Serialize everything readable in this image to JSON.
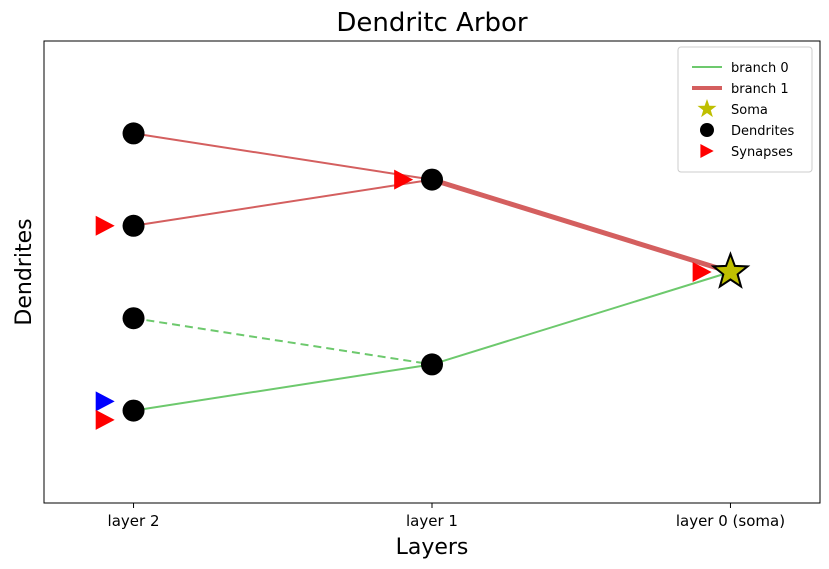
{
  "chart_data": {
    "type": "line",
    "title": "Dendritc Arbor",
    "xlabel": "Layers",
    "ylabel": "Dendrites",
    "xticks": [
      {
        "x": 0,
        "label": "layer 2"
      },
      {
        "x": 1,
        "label": "layer 1"
      },
      {
        "x": 2,
        "label": "layer 0 (soma)"
      }
    ],
    "xlim": [
      -0.3,
      2.3
    ],
    "ylim": [
      -0.5,
      4.5
    ],
    "legend_position": "top-right",
    "legend": [
      {
        "label": "branch 0",
        "kind": "line",
        "color": "#6dc96d",
        "width": 2
      },
      {
        "label": "branch 1",
        "kind": "line",
        "color": "#d45f5f",
        "width": 4
      },
      {
        "label": "Soma",
        "kind": "star",
        "color": "#bfbf00"
      },
      {
        "label": "Dendrites",
        "kind": "circle",
        "color": "#000000"
      },
      {
        "label": "Synapses",
        "kind": "triangle",
        "color": "#ff0000"
      }
    ],
    "soma": {
      "x": 2,
      "y": 2
    },
    "dendrites": [
      {
        "x": 0,
        "y": 3.5
      },
      {
        "x": 0,
        "y": 2.5
      },
      {
        "x": 0,
        "y": 1.5
      },
      {
        "x": 0,
        "y": 0.5
      },
      {
        "x": 1,
        "y": 3.0
      },
      {
        "x": 1,
        "y": 1.0
      }
    ],
    "segments": [
      {
        "branch": "branch 1",
        "from": [
          0,
          3.5
        ],
        "to": [
          1,
          3.0
        ],
        "color": "#d45f5f",
        "width": 2,
        "dashed": false
      },
      {
        "branch": "branch 1",
        "from": [
          0,
          2.5
        ],
        "to": [
          1,
          3.0
        ],
        "color": "#d45f5f",
        "width": 2,
        "dashed": false
      },
      {
        "branch": "branch 1",
        "from": [
          1,
          3.0
        ],
        "to": [
          2,
          2.0
        ],
        "color": "#d45f5f",
        "width": 5,
        "dashed": false
      },
      {
        "branch": "branch 0",
        "from": [
          0,
          1.5
        ],
        "to": [
          1,
          1.0
        ],
        "color": "#6dc96d",
        "width": 2,
        "dashed": true
      },
      {
        "branch": "branch 0",
        "from": [
          0,
          0.5
        ],
        "to": [
          1,
          1.0
        ],
        "color": "#6dc96d",
        "width": 2,
        "dashed": false
      },
      {
        "branch": "branch 0",
        "from": [
          1,
          1.0
        ],
        "to": [
          2,
          2.0
        ],
        "color": "#6dc96d",
        "width": 2,
        "dashed": false
      }
    ],
    "synapses": [
      {
        "x": -0.1,
        "y": 2.5,
        "color": "#ff0000"
      },
      {
        "x": -0.1,
        "y": 0.6,
        "color": "#0000ff"
      },
      {
        "x": -0.1,
        "y": 0.4,
        "color": "#ff0000"
      },
      {
        "x": 0.9,
        "y": 3.0,
        "color": "#ff0000"
      },
      {
        "x": 1.9,
        "y": 2.0,
        "color": "#ff0000"
      }
    ]
  }
}
